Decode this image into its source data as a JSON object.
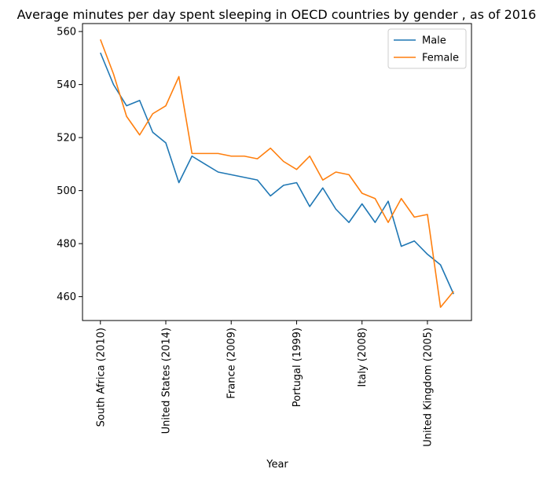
{
  "chart_data": {
    "type": "line",
    "title": "Average minutes per day spent sleeping in OECD countries by gender , as of 2016",
    "xlabel": "Year",
    "ylabel": "",
    "x_tick_labels": [
      "South Africa (2010)",
      "United States (2014)",
      "France (2009)",
      "Portugal (1999)",
      "Italy (2008)",
      "United Kingdom (2005)"
    ],
    "x_tick_positions": [
      0,
      5,
      10,
      15,
      20,
      25
    ],
    "x_count": 28,
    "ylim": [
      451,
      563
    ],
    "yticks": [
      460,
      480,
      500,
      520,
      540,
      560
    ],
    "grid": false,
    "legend_position": "top-right",
    "series": [
      {
        "name": "Male",
        "color": "#1f77b4",
        "values": [
          552,
          540,
          532,
          534,
          522,
          518,
          503,
          513,
          510,
          507,
          506,
          505,
          504,
          498,
          502,
          503,
          494,
          501,
          493,
          488,
          495,
          488,
          496,
          479,
          481,
          476,
          472,
          461
        ]
      },
      {
        "name": "Female",
        "color": "#ff7f0e",
        "values": [
          557,
          544,
          528,
          521,
          529,
          532,
          543,
          514,
          514,
          514,
          513,
          513,
          512,
          516,
          511,
          508,
          513,
          504,
          507,
          506,
          499,
          497,
          488,
          497,
          490,
          491,
          456,
          462
        ]
      }
    ]
  }
}
